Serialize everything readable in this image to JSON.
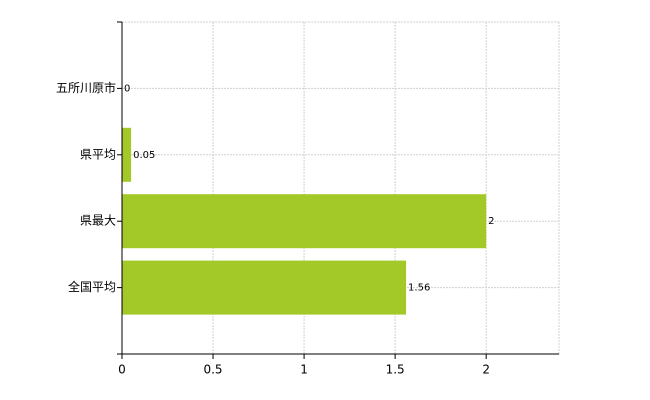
{
  "chart_data": {
    "type": "bar",
    "orientation": "horizontal",
    "categories": [
      "五所川原市",
      "県平均",
      "県最大",
      "全国平均"
    ],
    "values": [
      0,
      0.05,
      2,
      1.56
    ],
    "color": "#a3c929",
    "xlim": [
      0,
      2.4
    ],
    "xticks": [
      0,
      0.5,
      1,
      1.5,
      2
    ],
    "grid": true
  }
}
